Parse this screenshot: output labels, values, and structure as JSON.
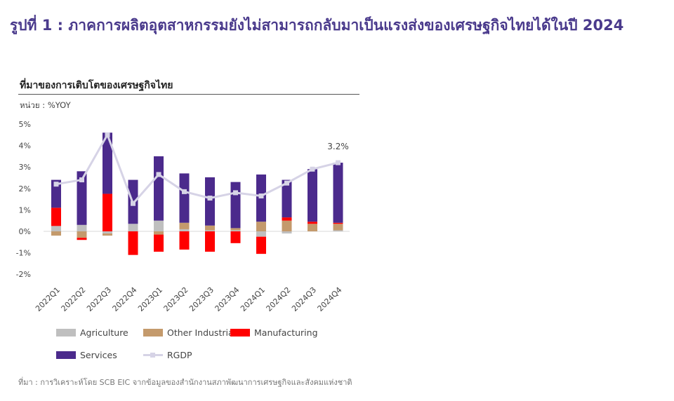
{
  "figure_title": "รูปที่ 1 : ภาคการผลิตอุตสาหกรรมยังไม่สามารถกลับมาเป็นแรงส่งของเศรษฐกิจไทยได้ในปี 2024",
  "chart_title": "ที่มาของการเติบโตของเศรษฐกิจไทย",
  "unit_label": "หน่วย : %YOY",
  "source_note": "ที่มา : การวิเคราะห์โดย SCB EIC จากข้อมูลของสำนักงานสภาพัฒนาการเศรษฐกิจและสังคมแห่งชาติ",
  "chart_data": {
    "type": "bar",
    "stacked": true,
    "categories": [
      "2022Q1",
      "2022Q2",
      "2022Q3",
      "2022Q4",
      "2023Q1",
      "2023Q2",
      "2023Q3",
      "2023Q4",
      "2024Q1",
      "2024Q2",
      "2024Q3",
      "2024Q4"
    ],
    "y_ticks": [
      "-2%",
      "-1%",
      "0%",
      "1%",
      "2%",
      "3%",
      "4%",
      "5%"
    ],
    "y_tick_values": [
      -2,
      -1,
      0,
      1,
      2,
      3,
      4,
      5
    ],
    "ylim": [
      -2,
      5
    ],
    "grid": false,
    "legend_position": "bottom",
    "series": [
      {
        "name": "Agriculture",
        "color": "#bfbfbf",
        "values": [
          0.25,
          0.3,
          -0.1,
          0.35,
          0.5,
          0.1,
          0.05,
          0.05,
          -0.25,
          -0.1,
          0.0,
          0.05
        ]
      },
      {
        "name": "Other Industrial",
        "color": "#c49a6c",
        "values": [
          -0.2,
          -0.3,
          -0.1,
          0.0,
          -0.15,
          0.3,
          0.22,
          0.1,
          0.45,
          0.5,
          0.35,
          0.3
        ]
      },
      {
        "name": "Manufacturing",
        "color": "#ff0000",
        "values": [
          0.85,
          -0.1,
          1.75,
          -1.1,
          -0.8,
          -0.85,
          -0.95,
          -0.55,
          -0.8,
          0.15,
          0.1,
          0.05
        ]
      },
      {
        "name": "Services",
        "color": "#4b2a8c",
        "values": [
          1.3,
          2.5,
          2.85,
          2.05,
          3.0,
          2.3,
          2.25,
          2.15,
          2.2,
          1.75,
          2.45,
          2.8
        ]
      }
    ],
    "line_series": {
      "name": "RGDP",
      "color": "#d6d3e6",
      "values": [
        2.2,
        2.4,
        4.5,
        1.3,
        2.65,
        1.85,
        1.55,
        1.8,
        1.65,
        2.25,
        2.9,
        3.2
      ]
    },
    "annotations": [
      {
        "category": "2024Q4",
        "text": "3.2%"
      }
    ]
  }
}
